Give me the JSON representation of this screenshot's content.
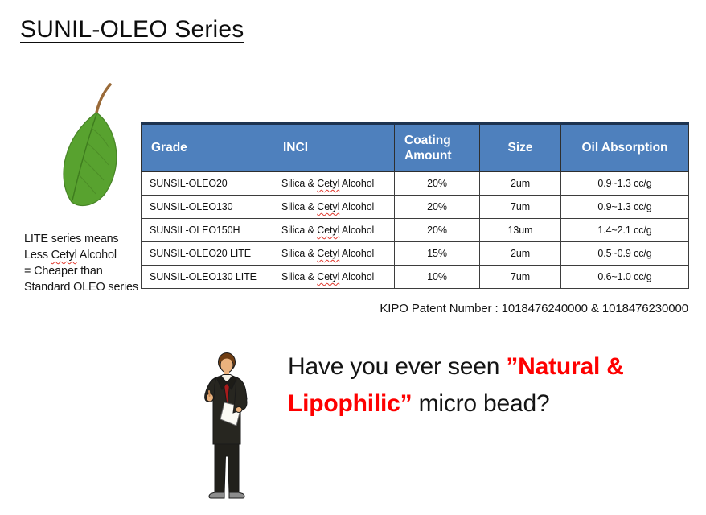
{
  "title": "SUNIL-OLEO Series",
  "leaf_caption": {
    "lines": [
      "LITE series means",
      "Less Cetyl Alcohol",
      "= Cheaper than",
      "Standard OLEO series"
    ]
  },
  "table": {
    "headers": [
      "Grade",
      "INCI",
      "Coating Amount",
      "Size",
      "Oil Absorption"
    ],
    "rows": [
      [
        "SUNSIL-OLEO20",
        "Silica & Cetyl Alcohol",
        "20%",
        "2um",
        "0.9~1.3 cc/g"
      ],
      [
        "SUNSIL-OLEO130",
        "Silica & Cetyl Alcohol",
        "20%",
        "7um",
        "0.9~1.3 cc/g"
      ],
      [
        "SUNSIL-OLEO150H",
        "Silica & Cetyl Alcohol",
        "20%",
        "13um",
        "1.4~2.1 cc/g"
      ],
      [
        "SUNSIL-OLEO20 LITE",
        "Silica & Cetyl Alcohol",
        "15%",
        "2um",
        "0.5~0.9 cc/g"
      ],
      [
        "SUNSIL-OLEO130 LITE",
        "Silica & Cetyl Alcohol",
        "10%",
        "7um",
        "0.6~1.0 cc/g"
      ]
    ],
    "header_bg": "#4e80bd",
    "header_text_color": "#ffffff"
  },
  "patent_note": "KIPO Patent Number : 1018476240000 & 1018476230000",
  "question": {
    "line1_black": "Have you ever seen ",
    "line1_red": "”Natural &",
    "line2_red": "Lipophilic”",
    "line2_black": " micro bead?",
    "highlight_color": "#fe0000"
  },
  "misspelled_words": [
    "Cetyl"
  ],
  "illustrations": {
    "leaf": "green-leaf",
    "businessman": "presenter-holding-notepad"
  }
}
